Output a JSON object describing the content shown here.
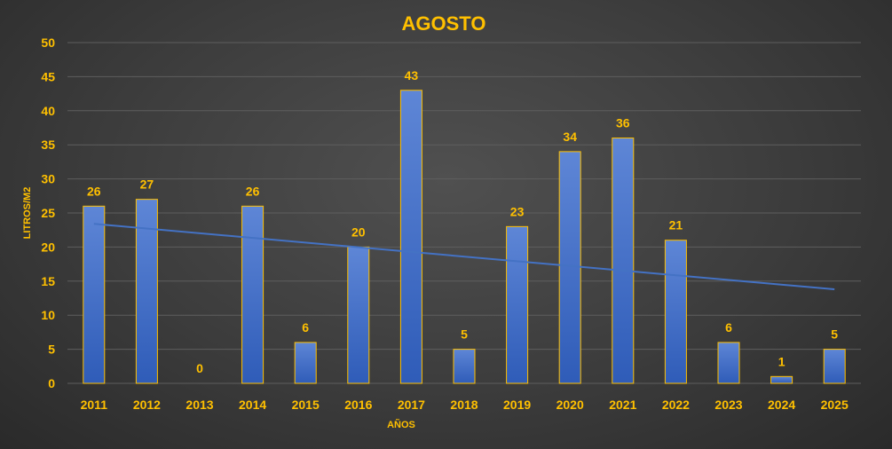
{
  "chart_data": {
    "type": "bar",
    "title": "AGOSTO",
    "xlabel": "AÑOS",
    "ylabel": "LITROS/M2",
    "categories": [
      "2011",
      "2012",
      "2013",
      "2014",
      "2015",
      "2016",
      "2017",
      "2018",
      "2019",
      "2020",
      "2021",
      "2022",
      "2023",
      "2024",
      "2025"
    ],
    "values": [
      26,
      27,
      0,
      26,
      6,
      20,
      43,
      5,
      23,
      34,
      36,
      21,
      6,
      1,
      5
    ],
    "ylim": [
      0,
      50
    ],
    "yticks": [
      0,
      5,
      10,
      15,
      20,
      25,
      30,
      35,
      40,
      45,
      50
    ],
    "grid": true,
    "legend": "none",
    "data_labels": true,
    "trendline": {
      "type": "linear",
      "start": 23.4,
      "end": 13.8
    },
    "colors": {
      "bar_top": "#5E86D6",
      "bar_bottom": "#2F5CB8",
      "bar_border": "#FFC000",
      "text": "#FFC000",
      "trendline": "#4472C4",
      "grid": "#5e5e5e"
    }
  }
}
